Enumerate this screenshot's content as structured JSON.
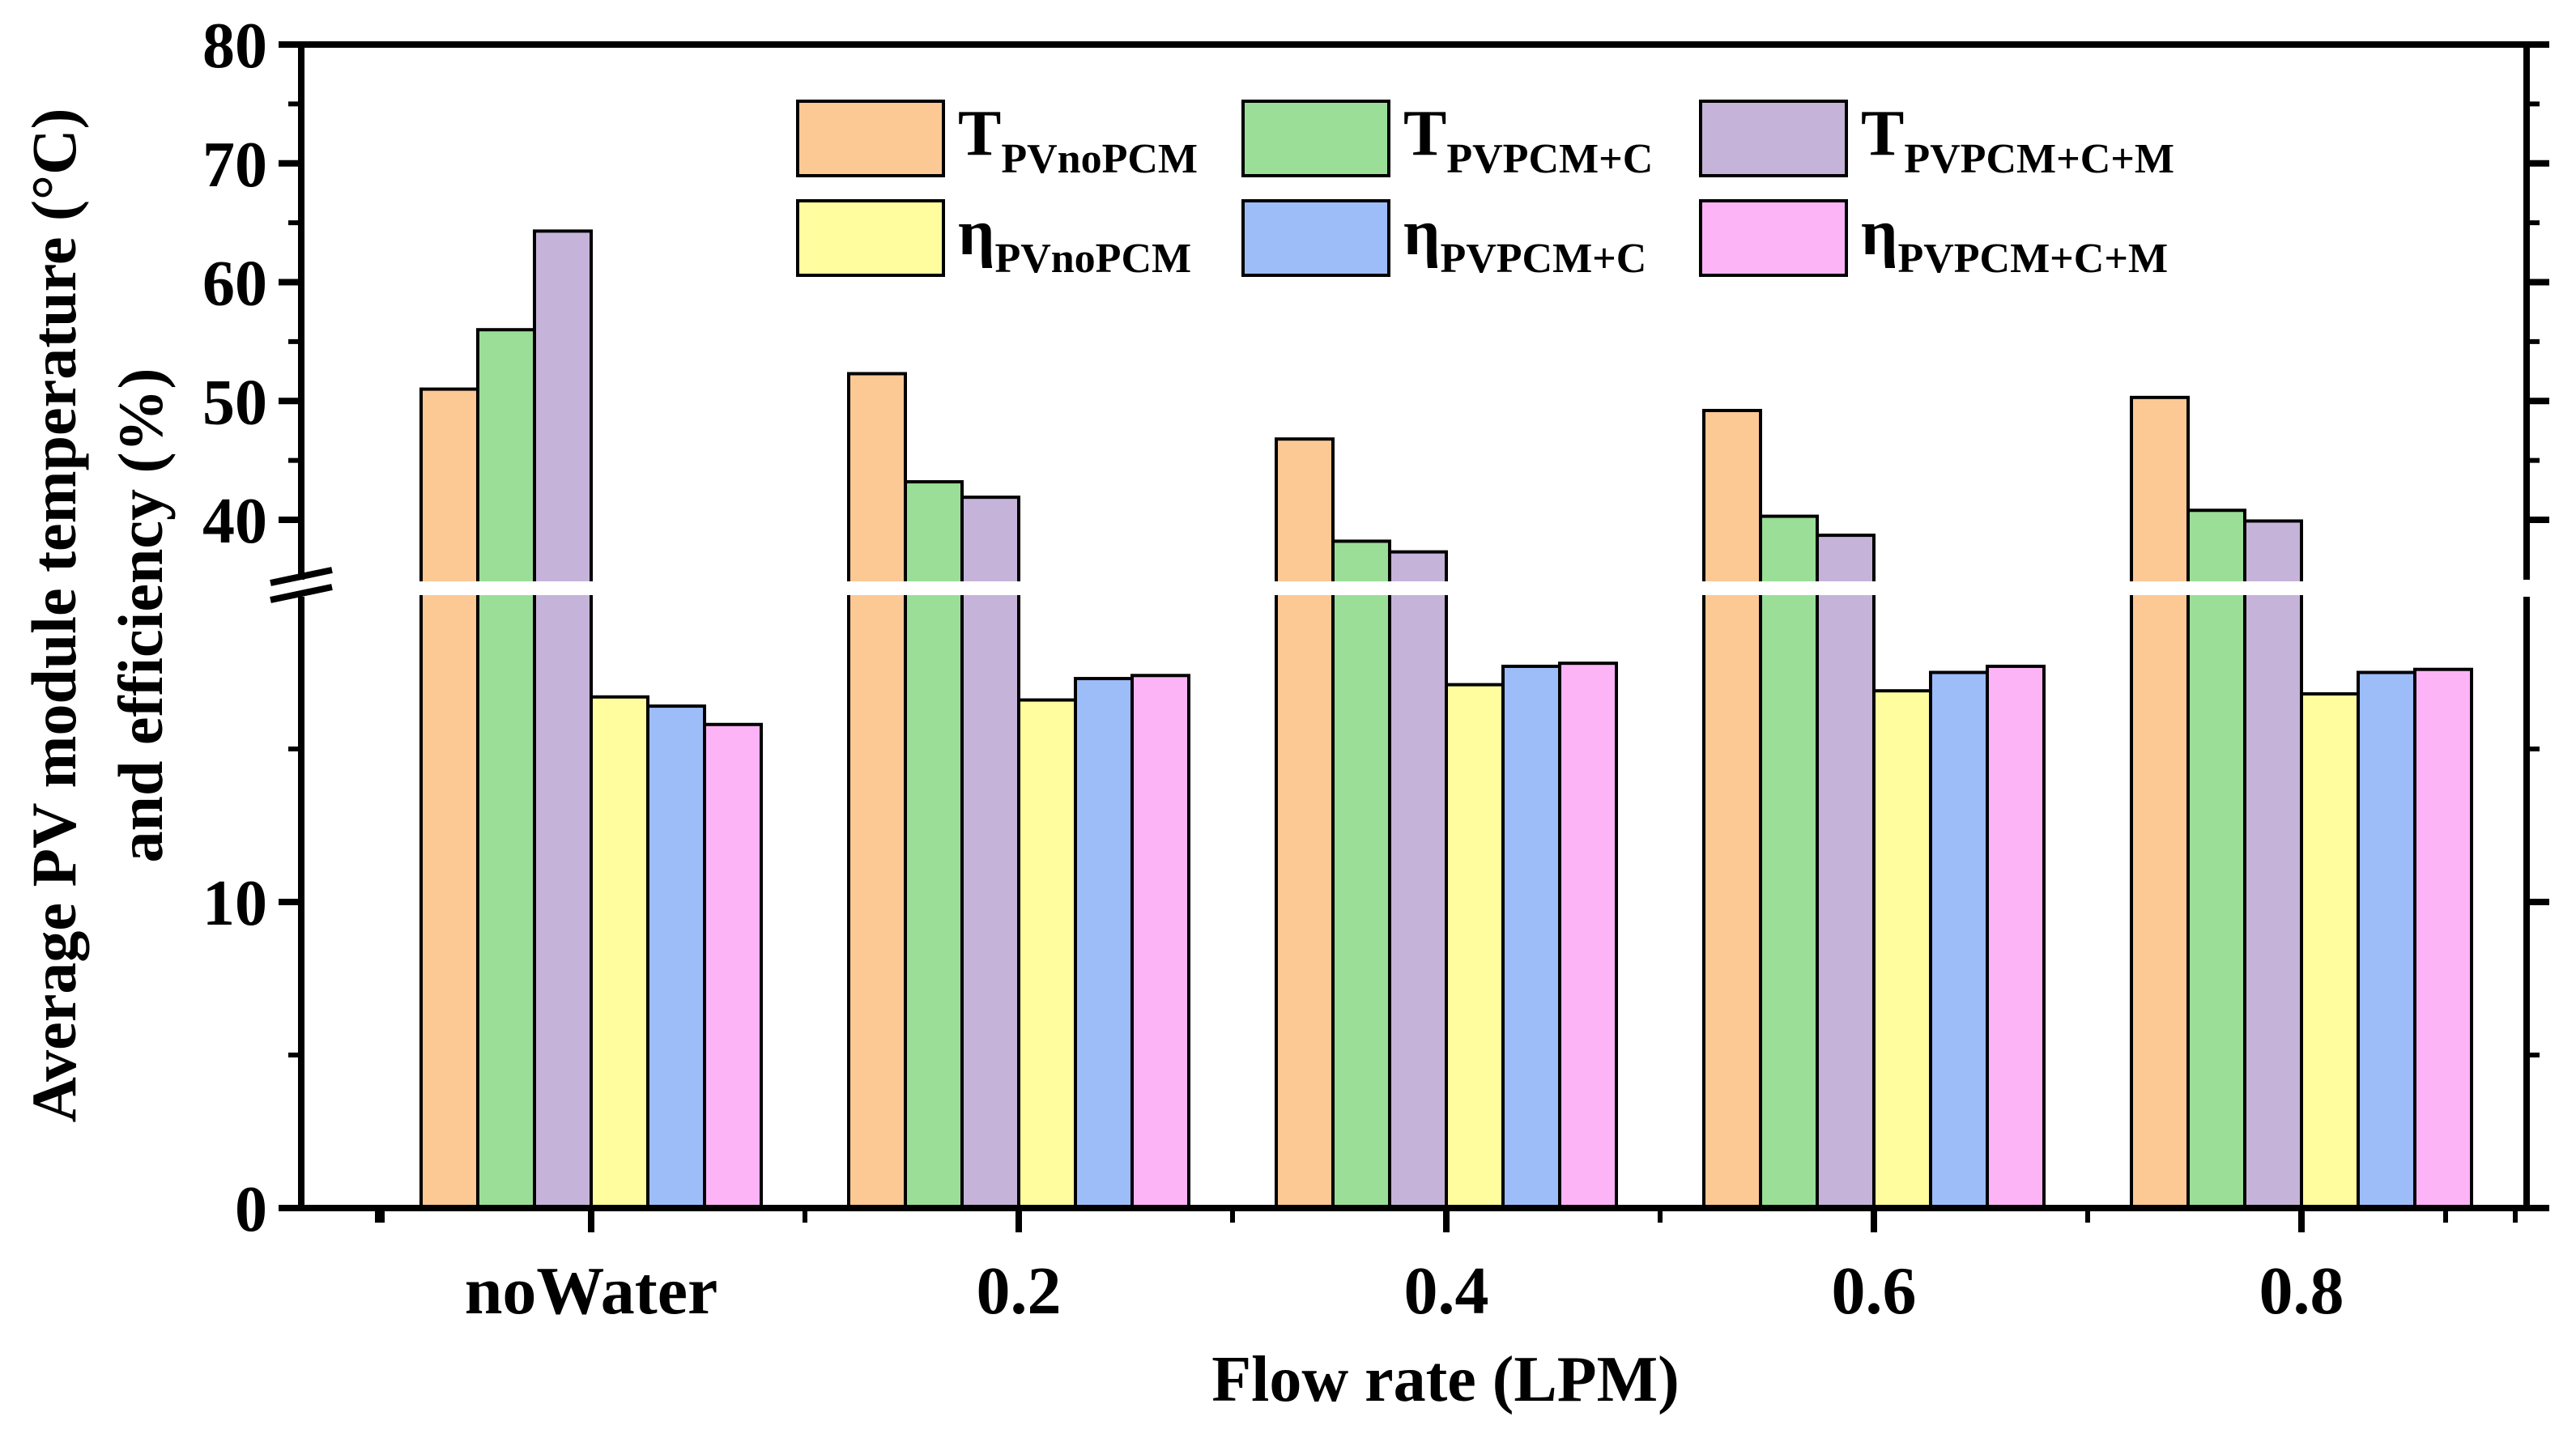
{
  "chart_data": {
    "type": "bar",
    "title": "",
    "xlabel": "Flow rate (LPM)",
    "ylabel_line1": "Average PV module temperature (°C)",
    "ylabel_line2": "and efficiency (%)",
    "categories": [
      "noWater",
      "0.2",
      "0.4",
      "0.6",
      "0.8"
    ],
    "axis_break": true,
    "lower_segment": {
      "range": [
        0,
        20
      ],
      "ticks": [
        "0",
        "10"
      ],
      "tick_values": [
        0,
        10
      ]
    },
    "upper_segment": {
      "range": [
        35,
        80
      ],
      "ticks": [
        "40",
        "50",
        "60",
        "70",
        "80"
      ],
      "tick_values": [
        40,
        50,
        60,
        70,
        80
      ]
    },
    "legend_position": "top",
    "series": [
      {
        "name": "T",
        "sub": "PVnoPCM",
        "color": "#FCC894",
        "values": [
          51.0,
          52.3,
          46.8,
          49.2,
          50.3
        ]
      },
      {
        "name": "T",
        "sub": "PVPCM+C",
        "color": "#9ADE98",
        "values": [
          56.0,
          43.2,
          38.2,
          40.3,
          40.8
        ]
      },
      {
        "name": "T",
        "sub": "PVPCM+C+M",
        "color": "#C6B3D9",
        "values": [
          64.3,
          41.9,
          37.3,
          38.7,
          39.9
        ]
      },
      {
        "name": "η",
        "sub": "PVnoPCM",
        "color": "#FFFD9E",
        "values": [
          16.7,
          16.6,
          17.1,
          16.9,
          16.8
        ]
      },
      {
        "name": "η",
        "sub": "PVPCM+C",
        "color": "#9DBDF9",
        "values": [
          16.4,
          17.3,
          17.7,
          17.5,
          17.5
        ]
      },
      {
        "name": "η",
        "sub": "PVPCM+C+M",
        "color": "#FDB4F6",
        "values": [
          15.8,
          17.4,
          17.8,
          17.7,
          17.6
        ]
      }
    ]
  }
}
